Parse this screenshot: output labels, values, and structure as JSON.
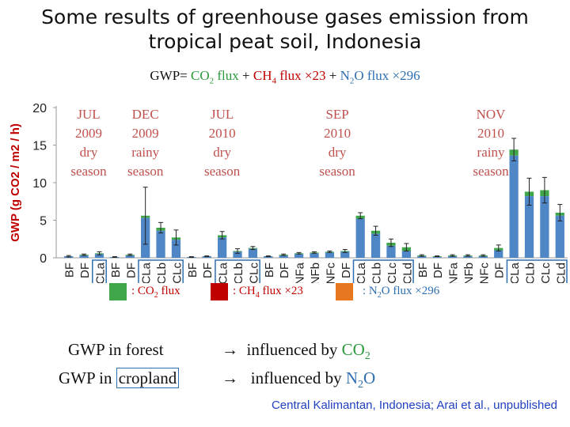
{
  "title_line1": "Some results of greenhouse gases emission from",
  "title_line2": "tropical peat soil, Indonesia",
  "formula": {
    "prefix": "GWP= ",
    "co2": "CO",
    "co2_sub": "2",
    "co2_rest": " flux",
    "plus1": " + ",
    "ch4": "CH",
    "ch4_sub": "4",
    "ch4_rest": " flux ×23",
    "plus2": " + ",
    "n2o": "N",
    "n2o_sub": "2",
    "n2o_rest": "O flux ×296"
  },
  "colors": {
    "co2": "#3fa64a",
    "ch4": "#c00000",
    "n2o": "#e87722",
    "bar": "#4f86c6",
    "season_text": "#c0504d",
    "highlight_box": "#2f6fb0"
  },
  "legend": {
    "co2_a": ": CO",
    "co2_sub": "2",
    "co2_b": " flux",
    "ch4_a": ": CH",
    "ch4_sub": "4",
    "ch4_b": " flux ×23",
    "n2o_a": ": N",
    "n2o_sub": "2",
    "n2o_b": "O flux ×296"
  },
  "conclusions": {
    "forest_label": "GWP in forest",
    "forest_arrow": "→",
    "forest_text": "influenced by ",
    "forest_gas": "CO",
    "forest_gas_sub": "2",
    "crop_label_a": "GWP in ",
    "crop_label_boxed": "cropland",
    "crop_arrow": "→",
    "crop_text": "influenced by ",
    "crop_gas_a": "N",
    "crop_gas_sub": "2",
    "crop_gas_b": "O"
  },
  "credit": "Central Kalimantan, Indonesia; Arai et al., unpublished",
  "chart_data": {
    "type": "bar",
    "ylabel": "GWP (g CO2 / m2 / h)",
    "ylim": [
      0,
      20
    ],
    "yticks": [
      0,
      5,
      10,
      15,
      20
    ],
    "grid": false,
    "periods": [
      {
        "month": "JUL",
        "year": "2009",
        "season1": "dry",
        "season2": "season",
        "categories": [
          "BF",
          "DF",
          "CLa"
        ],
        "values": [
          0.2,
          0.3,
          0.5
        ],
        "co2_top": [
          0.2,
          0.4,
          0.6
        ],
        "error": [
          0.1,
          0.1,
          0.2
        ]
      },
      {
        "month": "DEC",
        "year": "2009",
        "season1": "rainy",
        "season2": "season",
        "categories": [
          "BF",
          "DF",
          "CLa",
          "CLb",
          "CLc"
        ],
        "values": [
          0.1,
          0.3,
          5.3,
          3.6,
          2.4
        ],
        "co2_top": [
          0.1,
          0.4,
          5.6,
          4.0,
          2.7
        ],
        "error": [
          0.05,
          0.1,
          3.8,
          0.7,
          1.0
        ]
      },
      {
        "month": "JUL",
        "year": "2010",
        "season1": "dry",
        "season2": "season",
        "categories": [
          "BF",
          "DF",
          "CLa",
          "CLb",
          "CLc"
        ],
        "values": [
          0.1,
          0.2,
          2.7,
          0.8,
          1.2
        ],
        "co2_top": [
          0.1,
          0.2,
          3.0,
          0.9,
          1.3
        ],
        "error": [
          0.05,
          0.05,
          0.5,
          0.3,
          0.2
        ]
      },
      {
        "month": "SEP",
        "year": "2010",
        "season1": "dry",
        "season2": "season",
        "categories": [
          "BF",
          "DF",
          "NFa",
          "NFb",
          "NFc",
          "DF",
          "CLa",
          "CLb",
          "CLc",
          "CLd"
        ],
        "values": [
          0.2,
          0.3,
          0.5,
          0.6,
          0.7,
          0.8,
          5.2,
          3.2,
          1.6,
          0.9
        ],
        "co2_top": [
          0.2,
          0.4,
          0.6,
          0.7,
          0.8,
          0.9,
          5.6,
          3.6,
          2.0,
          1.4
        ],
        "error": [
          0.05,
          0.1,
          0.1,
          0.1,
          0.1,
          0.2,
          0.4,
          0.6,
          0.5,
          0.5
        ]
      },
      {
        "month": "NOV",
        "year": "2010",
        "season1": "rainy",
        "season2": "season",
        "categories": [
          "BF",
          "DF",
          "NFa",
          "NFb",
          "NFc",
          "DF",
          "CLa",
          "CLb",
          "CLc",
          "CLd"
        ],
        "values": [
          0.2,
          0.1,
          0.2,
          0.2,
          0.2,
          1.0,
          13.6,
          8.2,
          8.2,
          5.6
        ],
        "co2_top": [
          0.3,
          0.2,
          0.3,
          0.3,
          0.3,
          1.3,
          14.4,
          8.8,
          9.0,
          6.0
        ],
        "error": [
          0.1,
          0.05,
          0.1,
          0.1,
          0.1,
          0.4,
          1.5,
          1.8,
          1.7,
          1.1
        ]
      }
    ],
    "boxed_categories": "CL bars (cropland) highlighted with blue frames"
  }
}
